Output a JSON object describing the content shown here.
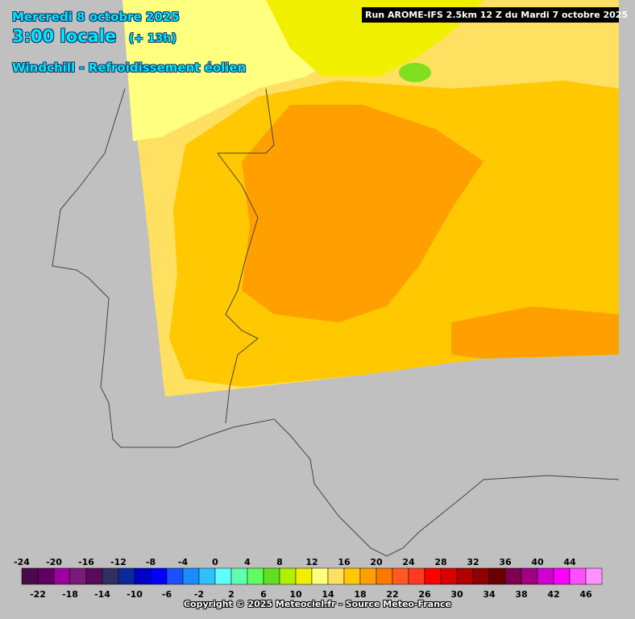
{
  "header": {
    "date": "Mercredi 8 octobre 2025",
    "time": "3:00 locale",
    "lead": "(+ 13h)",
    "product": "Windchill - Refroidissement éolien"
  },
  "run": "Run AROME-IFS 2.5km 12 Z du Mardi 7 octobre 2025",
  "legend": {
    "top_labels": [
      -24,
      -20,
      -16,
      -12,
      -8,
      -4,
      0,
      4,
      8,
      12,
      16,
      20,
      24,
      28,
      32,
      36,
      40,
      44
    ],
    "bottom_labels": [
      -22,
      -18,
      -14,
      -10,
      -6,
      -2,
      2,
      6,
      10,
      14,
      18,
      22,
      26,
      30,
      34,
      38,
      42,
      46
    ],
    "colors": [
      "#4a0a4a",
      "#600060",
      "#9a009a",
      "#7a1a7a",
      "#5a0a5a",
      "#303060",
      "#0a2a9a",
      "#0000c8",
      "#0000ff",
      "#1a50ff",
      "#1a8aff",
      "#30c0ff",
      "#60ffff",
      "#60ffb0",
      "#60ff60",
      "#60e020",
      "#b0f000",
      "#f0f000",
      "#ffff80",
      "#ffe060",
      "#ffc800",
      "#ffa000",
      "#ff7800",
      "#ff5a20",
      "#ff3a20",
      "#ff0000",
      "#d80000",
      "#b00000",
      "#900000",
      "#680000",
      "#800050",
      "#a00080",
      "#d000d0",
      "#ff00ff",
      "#ff50ff",
      "#ff90ff"
    ]
  },
  "copyright": "Copyright © 2025 Meteociel.fr - Source Meteo-France"
}
